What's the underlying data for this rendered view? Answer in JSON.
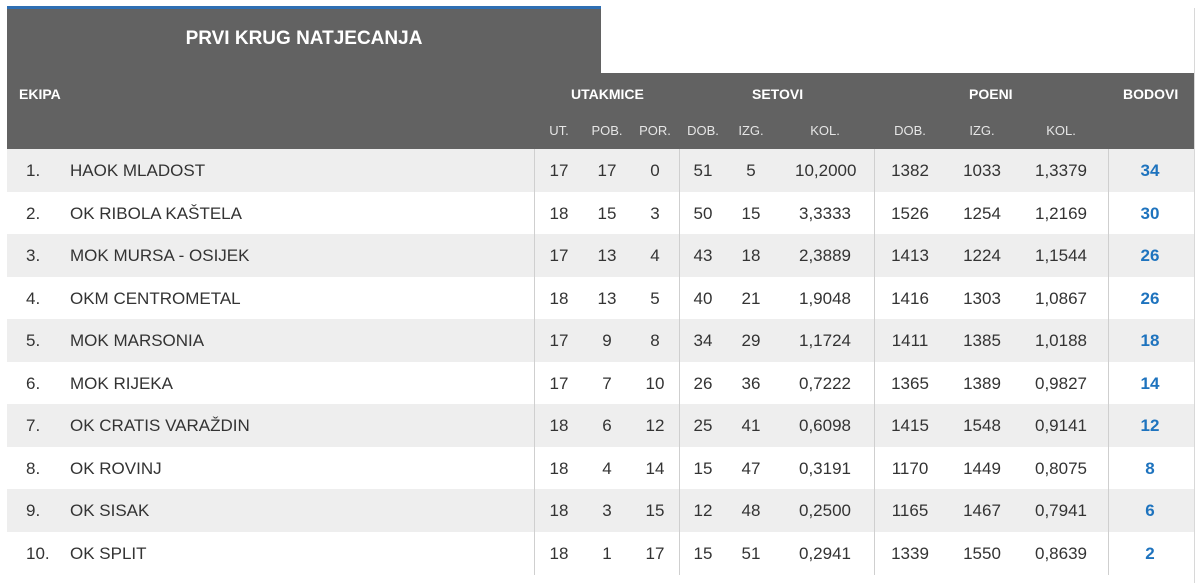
{
  "title": "PRVI KRUG NATJECANJA",
  "headers": {
    "team": "EKIPA",
    "matches": "UTAKMICE",
    "sets": "SETOVI",
    "points": "POENI",
    "standing_points": "BODOVI"
  },
  "subheaders": {
    "ut": "UT.",
    "pob": "POB.",
    "por": "POR.",
    "sets_dob": "DOB.",
    "sets_izg": "IZG.",
    "sets_kol": "KOL.",
    "pts_dob": "DOB.",
    "pts_izg": "IZG.",
    "pts_kol": "KOL."
  },
  "rows": [
    {
      "rank": "1.",
      "team": "HAOK MLADOST",
      "ut": "17",
      "pob": "17",
      "por": "0",
      "sd": "51",
      "si": "5",
      "sk": "10,2000",
      "pd": "1382",
      "pi": "1033",
      "pk": "1,3379",
      "bod": "34"
    },
    {
      "rank": "2.",
      "team": "OK RIBOLA KAŠTELA",
      "ut": "18",
      "pob": "15",
      "por": "3",
      "sd": "50",
      "si": "15",
      "sk": "3,3333",
      "pd": "1526",
      "pi": "1254",
      "pk": "1,2169",
      "bod": "30"
    },
    {
      "rank": "3.",
      "team": "MOK MURSA - OSIJEK",
      "ut": "17",
      "pob": "13",
      "por": "4",
      "sd": "43",
      "si": "18",
      "sk": "2,3889",
      "pd": "1413",
      "pi": "1224",
      "pk": "1,1544",
      "bod": "26"
    },
    {
      "rank": "4.",
      "team": "OKM CENTROMETAL",
      "ut": "18",
      "pob": "13",
      "por": "5",
      "sd": "40",
      "si": "21",
      "sk": "1,9048",
      "pd": "1416",
      "pi": "1303",
      "pk": "1,0867",
      "bod": "26"
    },
    {
      "rank": "5.",
      "team": "MOK MARSONIA",
      "ut": "17",
      "pob": "9",
      "por": "8",
      "sd": "34",
      "si": "29",
      "sk": "1,1724",
      "pd": "1411",
      "pi": "1385",
      "pk": "1,0188",
      "bod": "18"
    },
    {
      "rank": "6.",
      "team": "MOK RIJEKA",
      "ut": "17",
      "pob": "7",
      "por": "10",
      "sd": "26",
      "si": "36",
      "sk": "0,7222",
      "pd": "1365",
      "pi": "1389",
      "pk": "0,9827",
      "bod": "14"
    },
    {
      "rank": "7.",
      "team": "OK CRATIS VARAŽDIN",
      "ut": "18",
      "pob": "6",
      "por": "12",
      "sd": "25",
      "si": "41",
      "sk": "0,6098",
      "pd": "1415",
      "pi": "1548",
      "pk": "0,9141",
      "bod": "12"
    },
    {
      "rank": "8.",
      "team": "OK ROVINJ",
      "ut": "18",
      "pob": "4",
      "por": "14",
      "sd": "15",
      "si": "47",
      "sk": "0,3191",
      "pd": "1170",
      "pi": "1449",
      "pk": "0,8075",
      "bod": "8"
    },
    {
      "rank": "9.",
      "team": "OK SISAK",
      "ut": "18",
      "pob": "3",
      "por": "15",
      "sd": "12",
      "si": "48",
      "sk": "0,2500",
      "pd": "1165",
      "pi": "1467",
      "pk": "0,7941",
      "bod": "6"
    },
    {
      "rank": "10.",
      "team": "OK SPLIT",
      "ut": "18",
      "pob": "1",
      "por": "17",
      "sd": "15",
      "si": "51",
      "sk": "0,2941",
      "pd": "1339",
      "pi": "1550",
      "pk": "0,8639",
      "bod": "2"
    }
  ]
}
